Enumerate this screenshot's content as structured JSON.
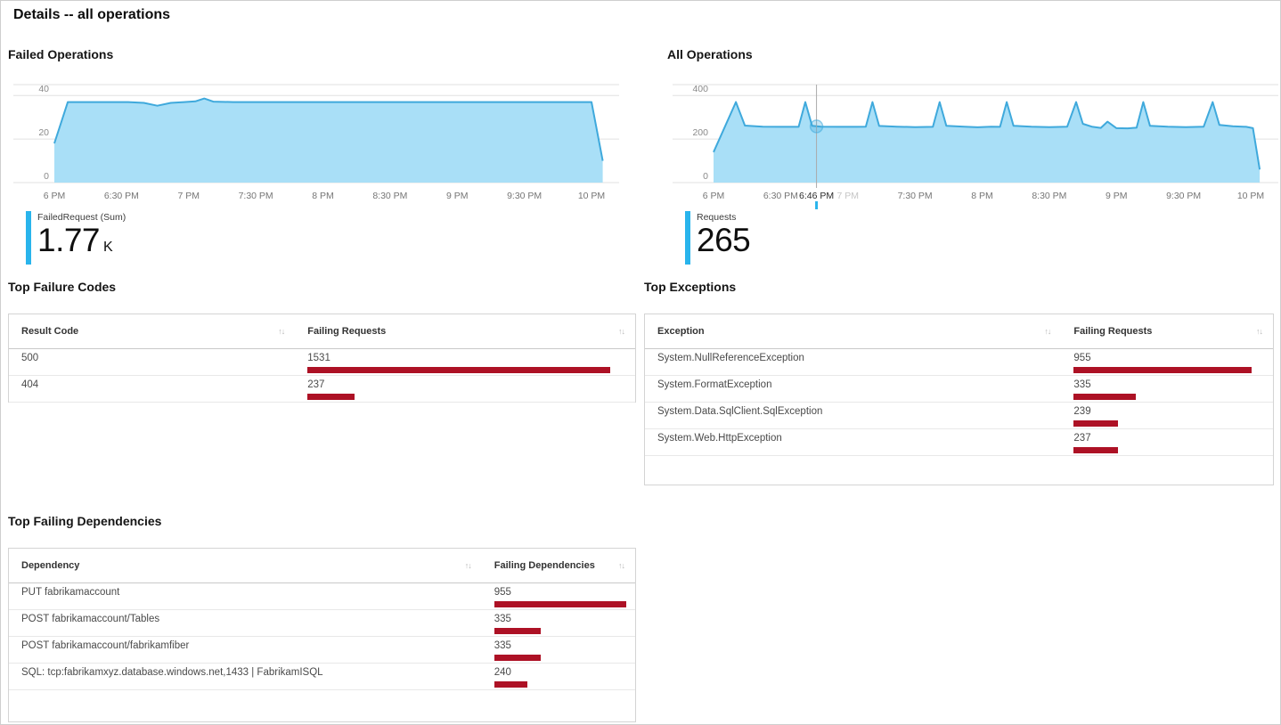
{
  "page_title": "Details -- all operations",
  "colors": {
    "area_fill": "#a9dff7",
    "area_stroke": "#3fa9dc",
    "kpi_bar": "#29b4ec",
    "data_bar": "#ad1125",
    "grid": "#e0e0e0",
    "crosshair": "#ababab"
  },
  "chart_data": [
    {
      "type": "area",
      "title": "Failed Operations",
      "xlabel": "time",
      "ylabel": "",
      "ylim": [
        0,
        45
      ],
      "yticks": [
        0,
        20,
        40
      ],
      "xticks": [
        {
          "m": 0,
          "label": "6 PM"
        },
        {
          "m": 30,
          "label": "6:30 PM"
        },
        {
          "m": 60,
          "label": "7 PM"
        },
        {
          "m": 90,
          "label": "7:30 PM"
        },
        {
          "m": 120,
          "label": "8 PM"
        },
        {
          "m": 150,
          "label": "8:30 PM"
        },
        {
          "m": 180,
          "label": "9 PM"
        },
        {
          "m": 210,
          "label": "9:30 PM"
        },
        {
          "m": 240,
          "label": "10 PM"
        }
      ],
      "points": [
        [
          0,
          18
        ],
        [
          6,
          37
        ],
        [
          15,
          37
        ],
        [
          24,
          37
        ],
        [
          33,
          37
        ],
        [
          40,
          36.6
        ],
        [
          46,
          35.3
        ],
        [
          52,
          36.6
        ],
        [
          58,
          37
        ],
        [
          63,
          37.3
        ],
        [
          67,
          38.6
        ],
        [
          71,
          37.2
        ],
        [
          80,
          37
        ],
        [
          95,
          37
        ],
        [
          110,
          37
        ],
        [
          125,
          37
        ],
        [
          140,
          37
        ],
        [
          155,
          37
        ],
        [
          170,
          37
        ],
        [
          185,
          37
        ],
        [
          200,
          37
        ],
        [
          215,
          37
        ],
        [
          230,
          37
        ],
        [
          240,
          37
        ],
        [
          245,
          10
        ]
      ],
      "kpi": {
        "label": "FailedRequest (Sum)",
        "value": "1.77",
        "suffix": "K"
      }
    },
    {
      "type": "area",
      "title": "All Operations",
      "xlabel": "time",
      "ylabel": "",
      "ylim": [
        0,
        450
      ],
      "yticks": [
        0,
        200,
        400
      ],
      "xticks": [
        {
          "m": 0,
          "label": "6 PM"
        },
        {
          "m": 30,
          "label": "6:30 PM"
        },
        {
          "m": 46,
          "label": "6:46 PM",
          "style": "dark"
        },
        {
          "m": 60,
          "label": "7 PM",
          "style": "muted"
        },
        {
          "m": 90,
          "label": "7:30 PM"
        },
        {
          "m": 120,
          "label": "8 PM"
        },
        {
          "m": 150,
          "label": "8:30 PM"
        },
        {
          "m": 180,
          "label": "9 PM"
        },
        {
          "m": 210,
          "label": "9:30 PM"
        },
        {
          "m": 240,
          "label": "10 PM"
        }
      ],
      "points": [
        [
          0,
          140
        ],
        [
          10,
          370
        ],
        [
          14,
          262
        ],
        [
          22,
          257
        ],
        [
          30,
          256
        ],
        [
          38,
          256
        ],
        [
          41,
          370
        ],
        [
          44,
          261
        ],
        [
          48,
          257
        ],
        [
          56,
          256
        ],
        [
          64,
          256
        ],
        [
          68,
          257
        ],
        [
          71,
          370
        ],
        [
          74,
          260
        ],
        [
          82,
          257
        ],
        [
          90,
          255
        ],
        [
          98,
          256
        ],
        [
          101,
          370
        ],
        [
          104,
          261
        ],
        [
          112,
          257
        ],
        [
          118,
          254
        ],
        [
          124,
          257
        ],
        [
          128,
          256
        ],
        [
          131,
          370
        ],
        [
          134,
          261
        ],
        [
          142,
          257
        ],
        [
          150,
          255
        ],
        [
          158,
          257
        ],
        [
          162,
          370
        ],
        [
          165,
          270
        ],
        [
          169,
          257
        ],
        [
          173,
          251
        ],
        [
          176,
          280
        ],
        [
          180,
          250
        ],
        [
          185,
          249
        ],
        [
          189,
          252
        ],
        [
          192,
          370
        ],
        [
          195,
          261
        ],
        [
          203,
          257
        ],
        [
          211,
          255
        ],
        [
          219,
          257
        ],
        [
          223,
          370
        ],
        [
          226,
          265
        ],
        [
          232,
          259
        ],
        [
          238,
          256
        ],
        [
          241,
          250
        ],
        [
          244,
          60
        ]
      ],
      "crosshair": {
        "m": 46,
        "marker_value": 258
      },
      "kpi": {
        "label": "Requests",
        "value": "265",
        "suffix": ""
      }
    },
    {
      "type": "table",
      "title": "Top Failure Codes",
      "columns": [
        "Result Code",
        "Failing Requests"
      ],
      "rows": [
        {
          "label": "500",
          "value": 1531
        },
        {
          "label": "404",
          "value": 237
        }
      ]
    },
    {
      "type": "table",
      "title": "Top Exceptions",
      "columns": [
        "Exception",
        "Failing Requests"
      ],
      "rows": [
        {
          "label": "System.NullReferenceException",
          "value": 955
        },
        {
          "label": "System.FormatException",
          "value": 335
        },
        {
          "label": "System.Data.SqlClient.SqlException",
          "value": 239
        },
        {
          "label": "System.Web.HttpException",
          "value": 237
        }
      ]
    },
    {
      "type": "table",
      "title": "Top Failing Dependencies",
      "columns": [
        "Dependency",
        "Failing Dependencies"
      ],
      "rows": [
        {
          "label": "PUT fabrikamaccount",
          "value": 955
        },
        {
          "label": "POST fabrikamaccount/Tables",
          "value": 335
        },
        {
          "label": "POST fabrikamaccount/fabrikamfiber",
          "value": 335
        },
        {
          "label": "SQL: tcp:fabrikamxyz.database.windows.net,1433 | FabrikamISQL",
          "value": 240
        }
      ]
    }
  ]
}
